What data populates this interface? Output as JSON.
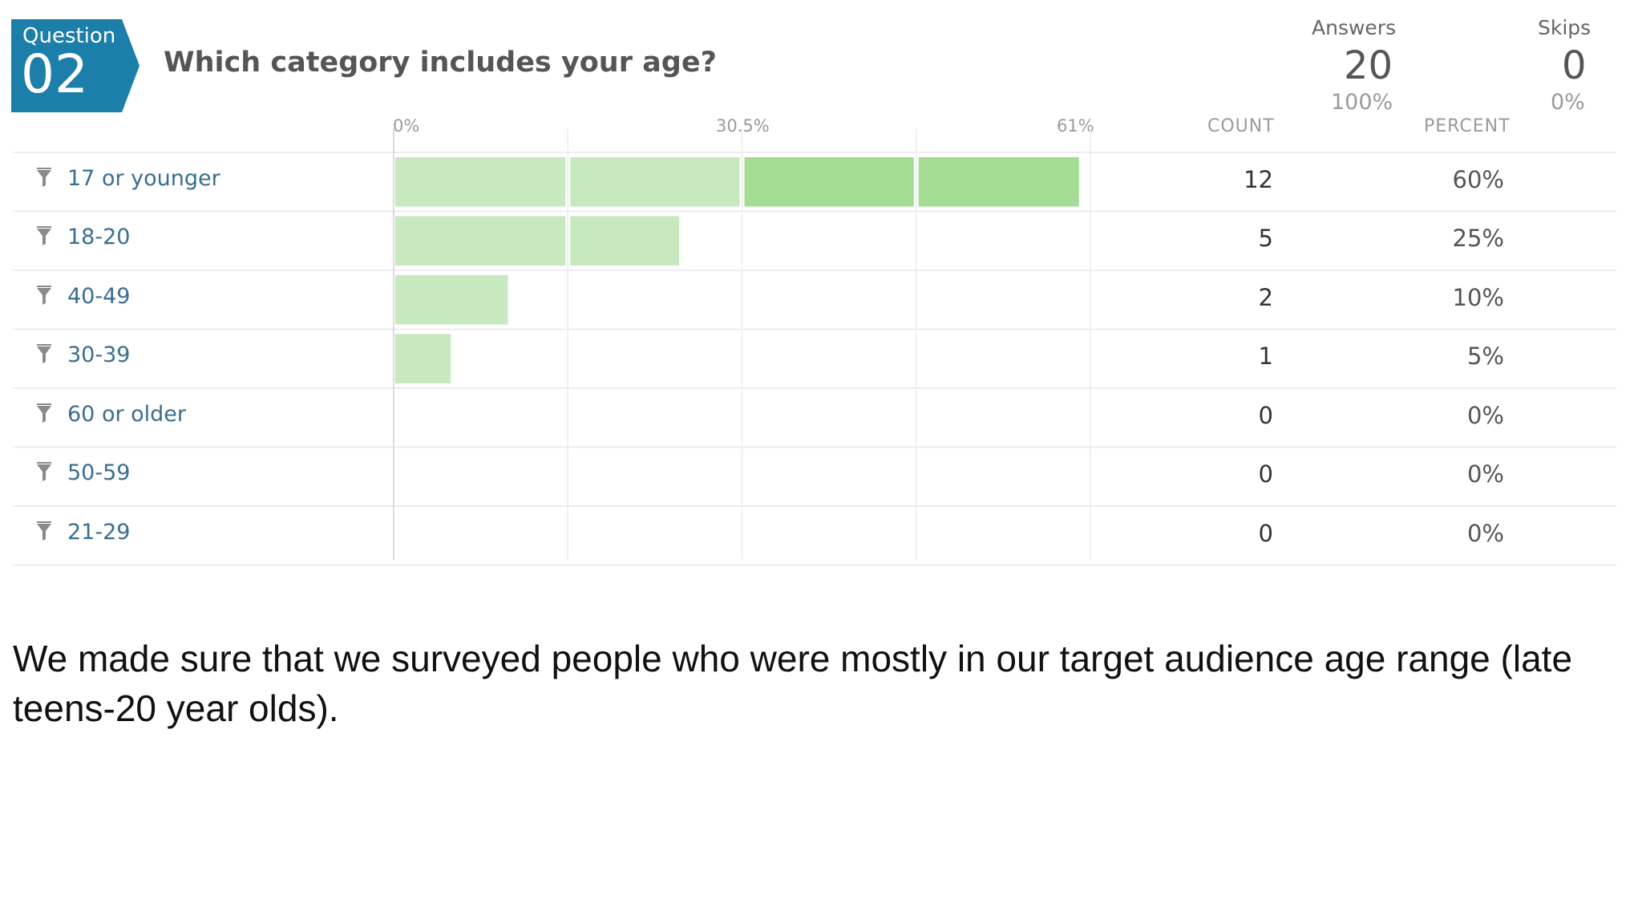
{
  "question": {
    "badge_label": "Question",
    "number": "02",
    "text": "Which category includes your age?",
    "badge_color": "#1b7fa9"
  },
  "stats": {
    "answers_label": "Answers",
    "answers_value": "20",
    "answers_pct": "100%",
    "skips_label": "Skips",
    "skips_value": "0",
    "skips_pct": "0%"
  },
  "columns": {
    "count": "COUNT",
    "percent": "PERCENT"
  },
  "chart_data": {
    "type": "bar",
    "orientation": "horizontal",
    "axis_ticks": [
      "0%",
      "30.5%",
      "61%"
    ],
    "xlim": [
      0,
      61
    ],
    "categories": [
      "17 or younger",
      "18-20",
      "40-49",
      "30-39",
      "60 or older",
      "50-59",
      "21-29"
    ],
    "counts": [
      "12",
      "5",
      "2",
      "1",
      "0",
      "0",
      "0"
    ],
    "percent_labels": [
      "60%",
      "25%",
      "10%",
      "5%",
      "0%",
      "0%",
      "0%"
    ],
    "values": [
      60,
      25,
      10,
      5,
      0,
      0,
      0
    ],
    "bar_color_light": "#c8e9c0",
    "bar_color_dark": "#a4dc94"
  },
  "caption": "We made sure that we surveyed people who were mostly in our target audience age range (late teens-20 year olds)."
}
